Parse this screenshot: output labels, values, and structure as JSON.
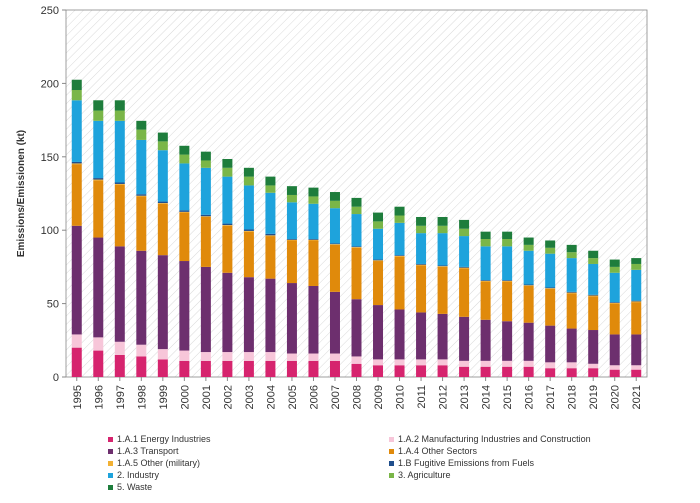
{
  "chart_data": {
    "type": "bar",
    "stacked": true,
    "title": "",
    "xlabel": "",
    "ylabel": "Emissions/Emissionen (kt)",
    "ylim": [
      0,
      250
    ],
    "yticks": [
      0,
      50,
      100,
      150,
      200,
      250
    ],
    "grid": false,
    "background": "hatched",
    "legend_position": "bottom",
    "categories": [
      "1995",
      "1996",
      "1997",
      "1998",
      "1999",
      "2000",
      "2001",
      "2002",
      "2003",
      "2004",
      "2005",
      "2006",
      "2007",
      "2008",
      "2009",
      "2010",
      "2011",
      "2012",
      "2013",
      "2014",
      "2015",
      "2016",
      "2017",
      "2018",
      "2019",
      "2020",
      "2021"
    ],
    "series": [
      {
        "name": "1.A.1 Energy Industries",
        "color": "#d6246e",
        "values": [
          20,
          18,
          15,
          14,
          12,
          11,
          11,
          11,
          11,
          11,
          11,
          11,
          11,
          9,
          8,
          8,
          8,
          8,
          7,
          7,
          7,
          7,
          6,
          6,
          6,
          5,
          5
        ]
      },
      {
        "name": "1.A.2 Manufacturing Industries and Construction",
        "color": "#f7c6d9",
        "values": [
          9,
          9,
          9,
          8,
          7,
          7,
          6,
          6,
          6,
          6,
          5,
          5,
          5,
          5,
          4,
          4,
          4,
          4,
          4,
          4,
          4,
          4,
          4,
          4,
          3,
          3,
          3
        ]
      },
      {
        "name": "1.A.3 Transport",
        "color": "#6d2f6e",
        "values": [
          74,
          68,
          65,
          64,
          64,
          61,
          58,
          54,
          51,
          50,
          48,
          46,
          42,
          39,
          37,
          34,
          32,
          31,
          30,
          28,
          27,
          26,
          25,
          23,
          23,
          21,
          21
        ]
      },
      {
        "name": "1.A.4 Other Sectors",
        "color": "#e08a0b",
        "values": [
          42,
          39,
          42,
          37,
          35,
          33,
          34,
          32,
          31,
          29,
          29,
          31,
          32,
          35,
          30,
          36,
          32,
          32,
          33,
          26,
          27,
          25,
          25,
          24,
          23,
          21,
          22
        ]
      },
      {
        "name": "1.A.5 Other (military)",
        "color": "#f2b134",
        "values": [
          0.5,
          0.5,
          0.5,
          0.5,
          0.5,
          0.5,
          0.5,
          0.5,
          0.5,
          0.5,
          0.5,
          0.5,
          0.5,
          0.5,
          0.5,
          0.5,
          0.5,
          0.5,
          0.5,
          0.5,
          0.5,
          0.5,
          0.5,
          0.5,
          0.5,
          0.5,
          0.5
        ]
      },
      {
        "name": "1.B Fugitive Emissions from Fuels",
        "color": "#1f4e8c",
        "values": [
          1,
          1,
          1,
          1,
          1,
          1,
          1,
          1,
          1,
          1,
          0.5,
          0.5,
          0.5,
          0.5,
          0.5,
          0.5,
          0.5,
          0.5,
          0.5,
          0.5,
          0.5,
          0.5,
          0.5,
          0.5,
          0.5,
          0.5,
          0.5
        ]
      },
      {
        "name": "2. Industry",
        "color": "#1ea3dc",
        "values": [
          42,
          39,
          42,
          37,
          35,
          32,
          32,
          32,
          30,
          28,
          25,
          24,
          24,
          22,
          21,
          22,
          21,
          22,
          21,
          23,
          23,
          23,
          23,
          23,
          21,
          20,
          21
        ]
      },
      {
        "name": "3. Agriculture",
        "color": "#7ab648",
        "values": [
          7,
          7,
          7,
          7,
          6,
          6,
          5,
          6,
          6,
          5,
          5,
          5,
          5,
          5,
          5,
          5,
          5,
          5,
          5,
          5,
          5,
          4,
          4,
          4,
          4,
          4,
          4
        ]
      },
      {
        "name": "5. Waste",
        "color": "#1e7d3c",
        "values": [
          7,
          7,
          7,
          6,
          6,
          6,
          6,
          6,
          6,
          6,
          6,
          6,
          6,
          6,
          6,
          6,
          6,
          6,
          6,
          5,
          5,
          5,
          5,
          5,
          5,
          5,
          4
        ]
      }
    ]
  }
}
